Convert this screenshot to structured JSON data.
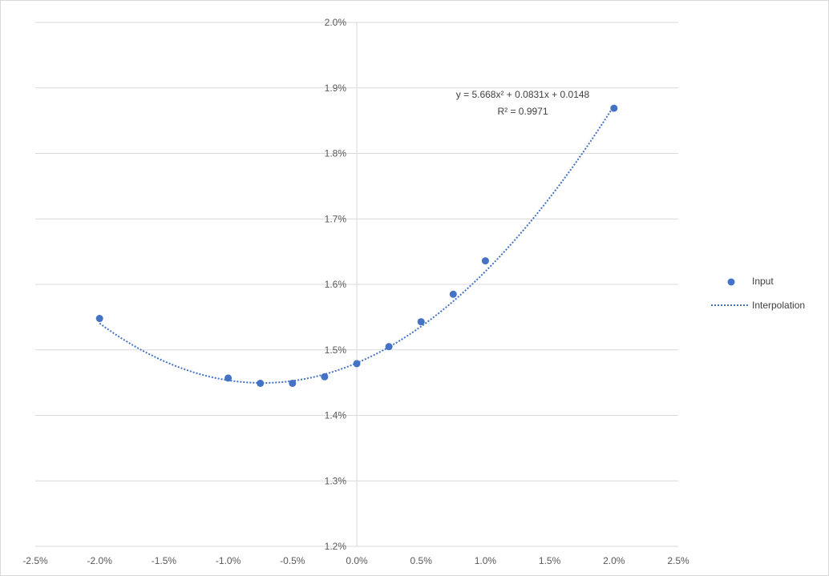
{
  "chart_data": {
    "type": "scatter",
    "title": "",
    "xlabel": "",
    "ylabel": "",
    "xlim": [
      -0.025,
      0.025
    ],
    "ylim": [
      0.012,
      0.02
    ],
    "xticks": [
      -0.025,
      -0.02,
      -0.015,
      -0.01,
      -0.005,
      0,
      0.005,
      0.01,
      0.015,
      0.02,
      0.025
    ],
    "xtick_labels": [
      "-2.5%",
      "-2.0%",
      "-1.5%",
      "-1.0%",
      "-0.5%",
      "0.0%",
      "0.5%",
      "1.0%",
      "1.5%",
      "2.0%",
      "2.5%"
    ],
    "yticks": [
      0.012,
      0.013,
      0.014,
      0.015,
      0.016,
      0.017,
      0.018,
      0.019,
      0.02
    ],
    "ytick_labels": [
      "1.2%",
      "1.3%",
      "1.4%",
      "1.5%",
      "1.6%",
      "1.7%",
      "1.8%",
      "1.9%",
      "2.0%"
    ],
    "grid": "horizontal",
    "legend_position": "right",
    "series": [
      {
        "name": "Input",
        "kind": "markers",
        "color": "#4472C4",
        "x": [
          -0.02,
          -0.01,
          -0.0075,
          -0.005,
          -0.0025,
          0,
          0.0025,
          0.005,
          0.0075,
          0.01,
          0.02
        ],
        "y": [
          0.01548,
          0.01457,
          0.01449,
          0.01449,
          0.01459,
          0.01479,
          0.01505,
          0.01543,
          0.01585,
          0.01636,
          0.01869
        ]
      },
      {
        "name": "Interpolation",
        "kind": "dotted-line",
        "color": "#4472C4",
        "fit": "polynomial-2",
        "coefficients": [
          5.668,
          0.0831,
          0.0148
        ],
        "x_range": [
          -0.02,
          0.02
        ]
      }
    ],
    "annotation": {
      "equation": "y = 5.668x² + 0.0831x + 0.0148",
      "r_squared": "R² = 0.9971"
    }
  }
}
